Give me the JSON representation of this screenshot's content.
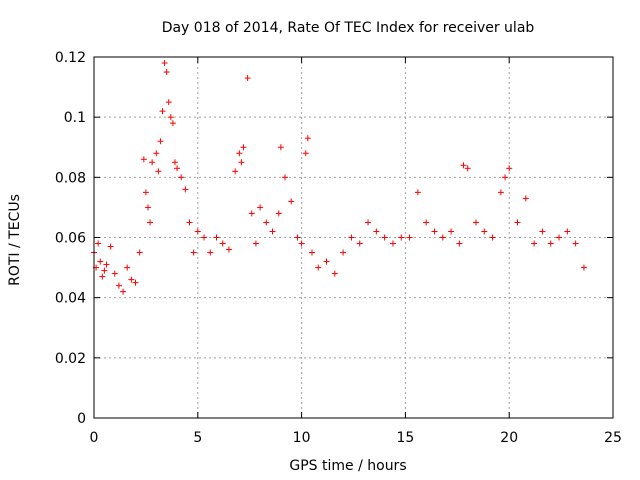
{
  "chart_data": {
    "type": "scatter",
    "title": "Day 018 of 2014, Rate Of TEC Index for receiver ulab",
    "xlabel": "GPS time / hours",
    "ylabel": "ROTI / TECUs",
    "xlim": [
      0,
      25
    ],
    "ylim": [
      0,
      0.12
    ],
    "x_ticks": [
      0,
      5,
      10,
      15,
      20,
      25
    ],
    "x_tick_labels": [
      "0",
      "5",
      "10",
      "15",
      "20",
      "25"
    ],
    "y_ticks": [
      0,
      0.02,
      0.04,
      0.06,
      0.08,
      0.1,
      0.12
    ],
    "y_tick_labels": [
      "0",
      "0.02",
      "0.04",
      "0.06",
      "0.08",
      "0.1",
      "0.12"
    ],
    "grid": true,
    "marker": "plus",
    "marker_color": "#ff0000",
    "series": [
      {
        "name": "ROTI",
        "x": [
          0.0,
          0.1,
          0.2,
          0.3,
          0.4,
          0.5,
          0.6,
          0.8,
          1.0,
          1.2,
          1.4,
          1.6,
          1.8,
          2.0,
          2.2,
          2.4,
          2.5,
          2.6,
          2.7,
          2.8,
          3.0,
          3.1,
          3.2,
          3.3,
          3.4,
          3.5,
          3.6,
          3.7,
          3.8,
          3.9,
          4.0,
          4.2,
          4.4,
          4.6,
          4.8,
          5.0,
          5.3,
          5.6,
          5.9,
          6.2,
          6.5,
          6.8,
          7.0,
          7.1,
          7.2,
          7.4,
          7.6,
          7.8,
          8.0,
          8.3,
          8.6,
          8.9,
          9.0,
          9.2,
          9.5,
          9.8,
          10.0,
          10.2,
          10.3,
          10.5,
          10.8,
          11.2,
          11.6,
          12.0,
          12.4,
          12.8,
          13.2,
          13.6,
          14.0,
          14.4,
          14.8,
          15.2,
          15.6,
          16.0,
          16.4,
          16.8,
          17.2,
          17.6,
          17.8,
          18.0,
          18.4,
          18.8,
          19.2,
          19.6,
          19.8,
          20.0,
          20.4,
          20.8,
          21.2,
          21.6,
          22.0,
          22.4,
          22.8,
          23.2,
          23.6
        ],
        "y": [
          0.055,
          0.05,
          0.058,
          0.052,
          0.047,
          0.049,
          0.051,
          0.057,
          0.048,
          0.044,
          0.042,
          0.05,
          0.046,
          0.045,
          0.055,
          0.086,
          0.075,
          0.07,
          0.065,
          0.085,
          0.088,
          0.082,
          0.092,
          0.102,
          0.118,
          0.115,
          0.105,
          0.1,
          0.098,
          0.085,
          0.083,
          0.08,
          0.076,
          0.065,
          0.055,
          0.062,
          0.06,
          0.055,
          0.06,
          0.058,
          0.056,
          0.082,
          0.088,
          0.085,
          0.09,
          0.113,
          0.068,
          0.058,
          0.07,
          0.065,
          0.062,
          0.068,
          0.09,
          0.08,
          0.072,
          0.06,
          0.058,
          0.088,
          0.093,
          0.055,
          0.05,
          0.052,
          0.048,
          0.055,
          0.06,
          0.058,
          0.065,
          0.062,
          0.06,
          0.058,
          0.06,
          0.06,
          0.075,
          0.065,
          0.062,
          0.06,
          0.062,
          0.058,
          0.084,
          0.083,
          0.065,
          0.062,
          0.06,
          0.075,
          0.08,
          0.083,
          0.065,
          0.073,
          0.058,
          0.062,
          0.058,
          0.06,
          0.062,
          0.058,
          0.05
        ]
      }
    ]
  }
}
